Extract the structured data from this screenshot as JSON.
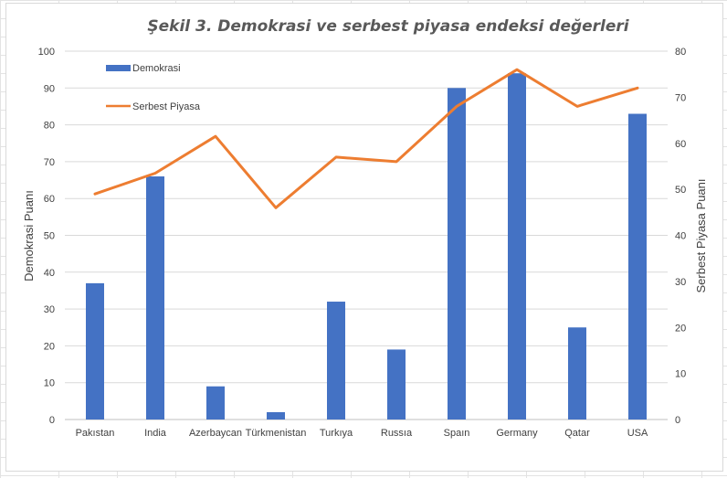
{
  "chart_data": {
    "type": "bar",
    "title": "Şekil 3. Demokrasi ve serbest piyasa endeksi değerleri",
    "categories": [
      "Pakıstan",
      "India",
      "Azerbaycan",
      "Türkmenistan",
      "Turkıya",
      "Russıa",
      "Spaın",
      "Germany",
      "Qatar",
      "USA"
    ],
    "series": [
      {
        "name": "Demokrasi",
        "type": "bar",
        "axis": "left",
        "color": "#4472c4",
        "values": [
          37,
          66,
          9,
          2,
          32,
          19,
          90,
          94,
          25,
          83
        ]
      },
      {
        "name": "Serbest Piyasa",
        "type": "line",
        "axis": "right",
        "color": "#ed7d31",
        "values": [
          49,
          53.5,
          61.5,
          46,
          57,
          56,
          68,
          76,
          68,
          72
        ]
      }
    ],
    "ylabel": "Demokrasi Puanı",
    "y2label": "Serbest Piyasa Puanı",
    "ylim": [
      0,
      100
    ],
    "y2lim": [
      0,
      80
    ],
    "yticks": [
      "0",
      "10",
      "20",
      "30",
      "40",
      "50",
      "60",
      "70",
      "80",
      "90",
      "100"
    ],
    "y2ticks": [
      "0",
      "10",
      "20",
      "30",
      "40",
      "50",
      "60",
      "70",
      "80"
    ],
    "grid": true,
    "legend": "top-left"
  }
}
